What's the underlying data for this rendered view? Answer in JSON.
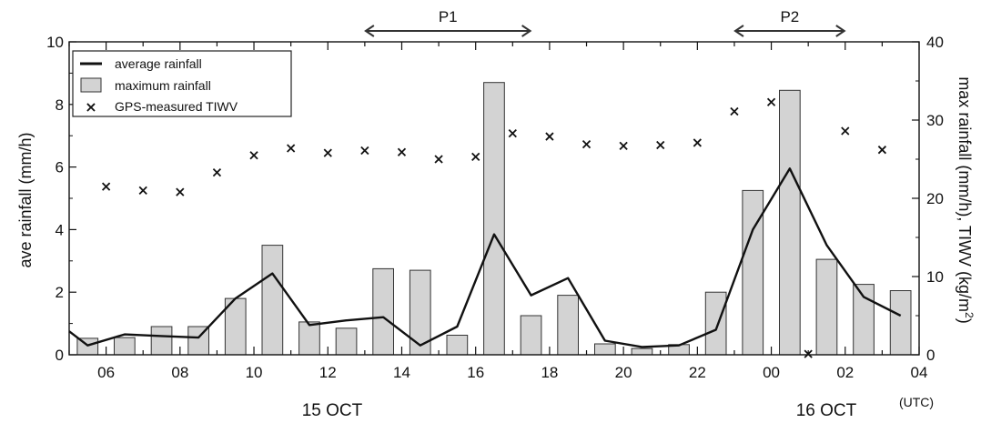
{
  "chart_data": {
    "type": "bar",
    "x_axis": {
      "tick_labels": [
        "06",
        "08",
        "10",
        "12",
        "14",
        "16",
        "18",
        "20",
        "22",
        "00",
        "02",
        "04"
      ],
      "date_labels": [
        "15 OCT",
        "16 OCT"
      ],
      "unit_label": "(UTC)"
    },
    "y_left": {
      "label": "ave rainfall (mm/h)",
      "range": [
        0,
        10
      ],
      "ticks": [
        "0",
        "2",
        "4",
        "6",
        "8",
        "10"
      ]
    },
    "y_right": {
      "label": "max rainfall (mm/h), TIWV (kg/m²)",
      "range": [
        0,
        40
      ],
      "ticks": [
        "0",
        "10",
        "20",
        "30",
        "40"
      ]
    },
    "periods": [
      {
        "label": "P1",
        "start_hour": 13,
        "end_hour": 17.5
      },
      {
        "label": "P2",
        "start_hour": 23,
        "end_hour": 26
      }
    ],
    "legend": [
      {
        "label": "average rainfall",
        "symbol": "line"
      },
      {
        "label": "maximum rainfall",
        "symbol": "bar"
      },
      {
        "label": "GPS-measured TIWV",
        "symbol": "cross"
      }
    ],
    "legend_position": "top-left",
    "series": [
      {
        "name": "maximum rainfall",
        "axis": "right",
        "type": "bar",
        "x_hours": [
          5.5,
          6.5,
          7.5,
          8.5,
          9.5,
          10.5,
          11.5,
          12.5,
          13.5,
          14.5,
          15.5,
          16.5,
          17.5,
          18.5,
          19.5,
          20.5,
          21.5,
          22.5,
          23.5,
          24.5,
          25.5,
          26.5,
          27.5
        ],
        "values": [
          2.1,
          2.2,
          3.6,
          3.6,
          7.2,
          14.0,
          4.2,
          3.4,
          11.0,
          10.8,
          2.5,
          34.8,
          5.0,
          7.6,
          1.4,
          0.8,
          1.3,
          8.0,
          21.0,
          33.8,
          12.2,
          9.0,
          8.2
        ]
      },
      {
        "name": "average rainfall",
        "axis": "left",
        "type": "line",
        "x_hours": [
          5,
          5.5,
          6.5,
          7.5,
          8.5,
          9.5,
          10.5,
          11.5,
          12.5,
          13.5,
          14.5,
          15.5,
          16.5,
          17.5,
          18.5,
          19.5,
          20.5,
          21.5,
          22.5,
          23.5,
          24.5,
          25.5,
          26.5,
          27.5
        ],
        "values": [
          0.75,
          0.3,
          0.65,
          0.6,
          0.55,
          1.8,
          2.6,
          0.95,
          1.1,
          1.2,
          0.3,
          0.9,
          3.85,
          1.9,
          2.45,
          0.45,
          0.25,
          0.3,
          0.8,
          4.0,
          5.95,
          3.5,
          1.85,
          1.25
        ]
      },
      {
        "name": "GPS-measured TIWV",
        "axis": "right",
        "type": "scatter",
        "x_hours": [
          6,
          7,
          8,
          9,
          10,
          11,
          12,
          13,
          14,
          15,
          16,
          17,
          18,
          19,
          20,
          21,
          22,
          23,
          24,
          25,
          26,
          27
        ],
        "values": [
          21.5,
          21.0,
          20.8,
          23.3,
          25.5,
          26.4,
          25.8,
          26.1,
          25.9,
          25.0,
          25.3,
          28.3,
          27.9,
          26.9,
          26.7,
          26.8,
          27.1,
          31.1,
          32.3,
          0.1,
          28.6,
          26.2
        ]
      }
    ]
  }
}
